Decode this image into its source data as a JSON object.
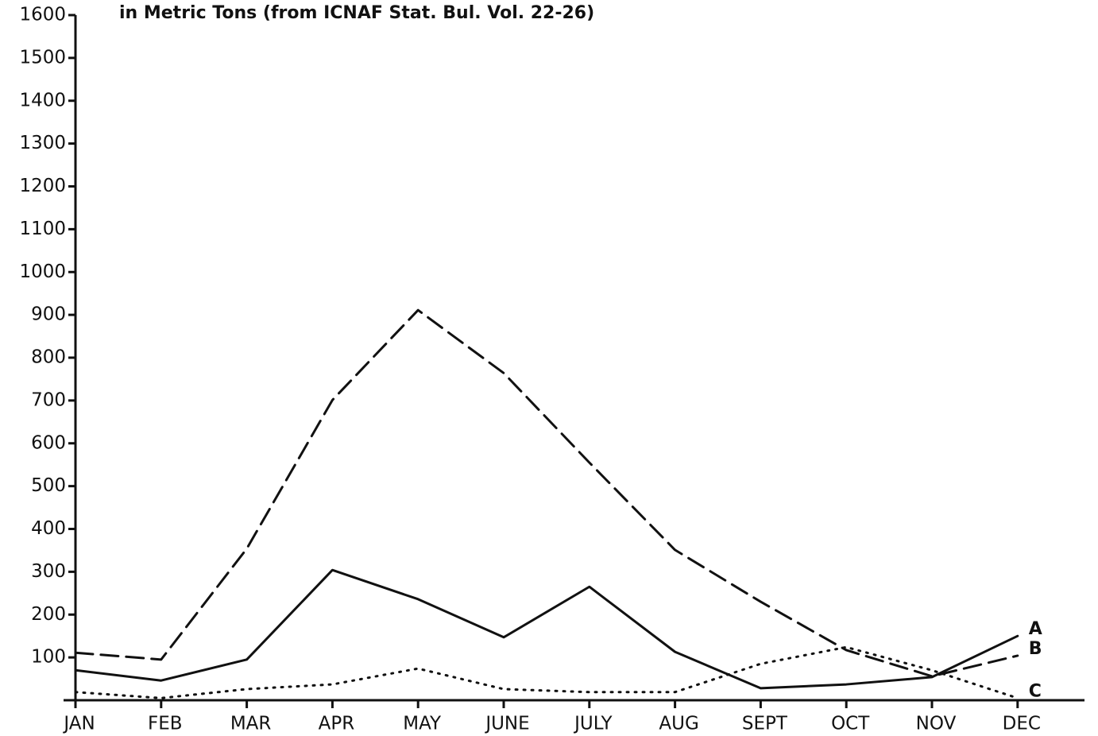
{
  "chart_data": {
    "type": "line",
    "title": "in Metric Tons (from ICNAF Stat. Bul. Vol. 22-26)",
    "categories": [
      "JAN",
      "FEB",
      "MAR",
      "APR",
      "MAY",
      "JUNE",
      "JULY",
      "AUG",
      "SEPT",
      "OCT",
      "NOV",
      "DEC"
    ],
    "series": [
      {
        "name": "A",
        "color": "#111111",
        "style": "solid",
        "values": [
          70,
          46,
          95,
          304,
          236,
          147,
          265,
          113,
          28,
          37,
          54,
          150
        ]
      },
      {
        "name": "B",
        "color": "#111111",
        "style": "dashed",
        "values": [
          111,
          95,
          354,
          701,
          911,
          764,
          555,
          351,
          230,
          117,
          56,
          104
        ]
      },
      {
        "name": "C",
        "color": "#111111",
        "style": "dotted",
        "values": [
          19,
          5,
          26,
          37,
          74,
          26,
          19,
          19,
          85,
          124,
          70,
          5
        ]
      }
    ],
    "ylim": [
      0,
      1600
    ],
    "yticks": [
      100,
      200,
      300,
      400,
      500,
      600,
      700,
      800,
      900,
      1000,
      1100,
      1200,
      1300,
      1400,
      1500,
      1600
    ],
    "grid": false
  }
}
